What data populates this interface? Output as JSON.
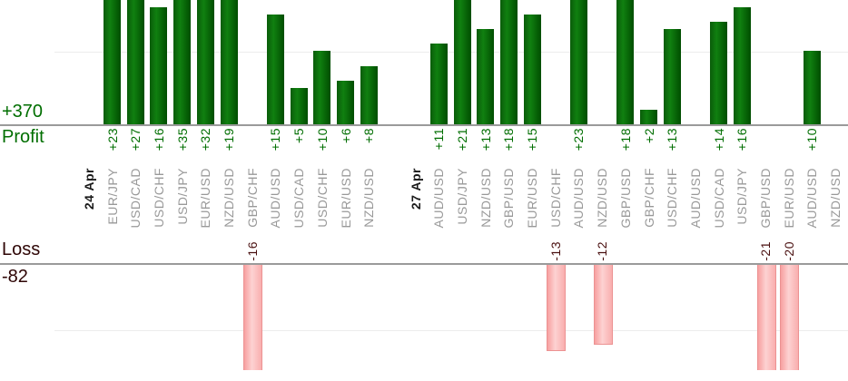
{
  "chart_data": {
    "type": "bar",
    "title": "",
    "description": "Profit and loss per closed trade, grouped by date",
    "profit_axis": {
      "total_label": "+370",
      "heading": "Profit",
      "total": 370,
      "gridline_value": 10
    },
    "loss_axis": {
      "heading": "Loss",
      "total_label": "-82",
      "total": -82,
      "gridline_value": -10
    },
    "groups": [
      {
        "date": "24 Apr",
        "trades": [
          {
            "pair": "EUR/JPY",
            "value": 23,
            "value_label": "+23"
          },
          {
            "pair": "USD/CAD",
            "value": 27,
            "value_label": "+27"
          },
          {
            "pair": "USD/CHF",
            "value": 16,
            "value_label": "+16"
          },
          {
            "pair": "USD/JPY",
            "value": 35,
            "value_label": "+35"
          },
          {
            "pair": "EUR/USD",
            "value": 32,
            "value_label": "+32"
          },
          {
            "pair": "NZD/USD",
            "value": 19,
            "value_label": "+19"
          },
          {
            "pair": "GBP/CHF",
            "value": -16,
            "value_label": "-16"
          },
          {
            "pair": "AUD/USD",
            "value": 15,
            "value_label": "+15"
          },
          {
            "pair": "USD/CAD",
            "value": 5,
            "value_label": "+5"
          },
          {
            "pair": "USD/CHF",
            "value": 10,
            "value_label": "+10"
          },
          {
            "pair": "EUR/USD",
            "value": 6,
            "value_label": "+6"
          },
          {
            "pair": "NZD/USD",
            "value": 8,
            "value_label": "+8"
          }
        ]
      },
      {
        "date": "27 Apr",
        "trades": [
          {
            "pair": "AUD/USD",
            "value": 11,
            "value_label": "+11"
          },
          {
            "pair": "USD/JPY",
            "value": 21,
            "value_label": "+21"
          },
          {
            "pair": "NZD/USD",
            "value": 13,
            "value_label": "+13"
          },
          {
            "pair": "GBP/USD",
            "value": 18,
            "value_label": "+18"
          },
          {
            "pair": "EUR/USD",
            "value": 15,
            "value_label": "+15"
          },
          {
            "pair": "USD/CHF",
            "value": -13,
            "value_label": "-13"
          },
          {
            "pair": "AUD/USD",
            "value": 23,
            "value_label": "+23"
          },
          {
            "pair": "NZD/USD",
            "value": -12,
            "value_label": "-12"
          },
          {
            "pair": "GBP/USD",
            "value": 18,
            "value_label": "+18"
          },
          {
            "pair": "GBP/CHF",
            "value": 2,
            "value_label": "+2"
          },
          {
            "pair": "USD/CHF",
            "value": 13,
            "value_label": "+13"
          },
          {
            "pair": "AUD/USD",
            "value": null,
            "value_label": ""
          },
          {
            "pair": "USD/CAD",
            "value": 14,
            "value_label": "+14"
          },
          {
            "pair": "USD/JPY",
            "value": 16,
            "value_label": "+16"
          },
          {
            "pair": "GBP/USD",
            "value": -21,
            "value_label": "-21"
          },
          {
            "pair": "EUR/USD",
            "value": -20,
            "value_label": "-20"
          },
          {
            "pair": "AUD/USD",
            "value": 10,
            "value_label": "+10"
          },
          {
            "pair": "NZD/USD",
            "value": null,
            "value_label": ""
          }
        ]
      }
    ],
    "layout": {
      "grid": "on",
      "profit_bars_clipped_at_top": true,
      "loss_bars_clipped_at_bottom": true
    },
    "colors": {
      "profit_bar": "#0e7d0e",
      "loss_bar": "#fbc0c0",
      "profit_text": "#006e00",
      "loss_text": "#4a1010",
      "loss_heading_text": "#2e0505",
      "pair_label": "#999999",
      "date_label": "#1a1a1a",
      "axis_line": "#9a9a9a",
      "gridline": "#ececec"
    }
  }
}
